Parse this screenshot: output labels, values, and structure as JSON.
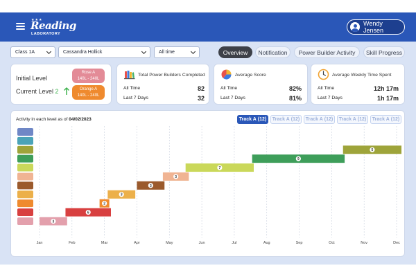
{
  "header": {
    "logo": {
      "line1": "Reading",
      "line2": "LABORATORY",
      "stars": "★★★"
    },
    "user_name": "Wendy Jensen"
  },
  "filters": {
    "class": "Class 1A",
    "student": "Cassandra Hollick",
    "range": "All time"
  },
  "tabs": [
    {
      "label": "Overview",
      "active": true
    },
    {
      "label": "Notification",
      "active": false
    },
    {
      "label": "Power Builder Activity",
      "active": false
    },
    {
      "label": "Skill Progress",
      "active": false
    }
  ],
  "levels": {
    "initial_label": "Initial Level",
    "initial_name": "Rose A",
    "initial_range": "140L - 240L",
    "initial_color": "#e38b97",
    "current_label": "Current Level",
    "current_number": "2",
    "current_name": "Orange A",
    "current_range": "140L - 240L",
    "current_color": "#ef8a2e",
    "arrow_color": "#3fb34f"
  },
  "stats": [
    {
      "icon": "books-icon",
      "title": "Total Power Builders Completed",
      "all_time_label": "All Time",
      "all_time": "82",
      "last7_label": "Last 7 Days",
      "last7": "32"
    },
    {
      "icon": "pie-chart-icon",
      "title": "Average Score",
      "all_time_label": "All Time",
      "all_time": "82%",
      "last7_label": "Last 7 Days",
      "last7": "81%"
    },
    {
      "icon": "clock-icon",
      "title": "Average Weekly Time Spent",
      "all_time_label": "All Time",
      "all_time": "12h 17m",
      "last7_label": "Last 7 Days",
      "last7": "1h 17m"
    }
  ],
  "activity": {
    "title_prefix": "Activity in each level as of",
    "date": "04/02/2023",
    "track_tabs": [
      {
        "label": "Track A",
        "count": "(12)",
        "active": true
      },
      {
        "label": "Track A",
        "count": "(12)",
        "active": false
      },
      {
        "label": "Track A",
        "count": "(12)",
        "active": false
      },
      {
        "label": "Track A",
        "count": "(12)",
        "active": false
      },
      {
        "label": "Track A",
        "count": "(12)",
        "active": false
      }
    ]
  },
  "chart_data": {
    "type": "gantt",
    "months": [
      "Jan",
      "Feb",
      "Mar",
      "Apr",
      "May",
      "Jun",
      "Jul",
      "Aug",
      "Sep",
      "Oct",
      "Nov",
      "Dec"
    ],
    "levels": [
      {
        "color": "#6f87c6"
      },
      {
        "color": "#4aa3b8"
      },
      {
        "color": "#9ea43a"
      },
      {
        "color": "#3e9e5a"
      },
      {
        "color": "#cad85a"
      },
      {
        "color": "#f0b493"
      },
      {
        "color": "#9b5a2c"
      },
      {
        "color": "#ecb04a"
      },
      {
        "color": "#ef8a2e"
      },
      {
        "color": "#d84040"
      },
      {
        "color": "#e3a0ac"
      }
    ],
    "bars": [
      {
        "level_index": 10,
        "start_month": 0.0,
        "end_month": 0.85,
        "value": 3
      },
      {
        "level_index": 9,
        "start_month": 0.8,
        "end_month": 2.2,
        "value": 6
      },
      {
        "level_index": 8,
        "start_month": 1.85,
        "end_month": 2.15,
        "value": 2
      },
      {
        "level_index": 7,
        "start_month": 2.1,
        "end_month": 2.95,
        "value": 3
      },
      {
        "level_index": 6,
        "start_month": 3.0,
        "end_month": 3.85,
        "value": 3
      },
      {
        "level_index": 5,
        "start_month": 3.8,
        "end_month": 4.6,
        "value": 3
      },
      {
        "level_index": 4,
        "start_month": 4.5,
        "end_month": 6.6,
        "value": 7
      },
      {
        "level_index": 3,
        "start_month": 6.55,
        "end_month": 9.4,
        "value": 9
      },
      {
        "level_index": 2,
        "start_month": 9.35,
        "end_month": 11.15,
        "value": 5
      }
    ]
  }
}
